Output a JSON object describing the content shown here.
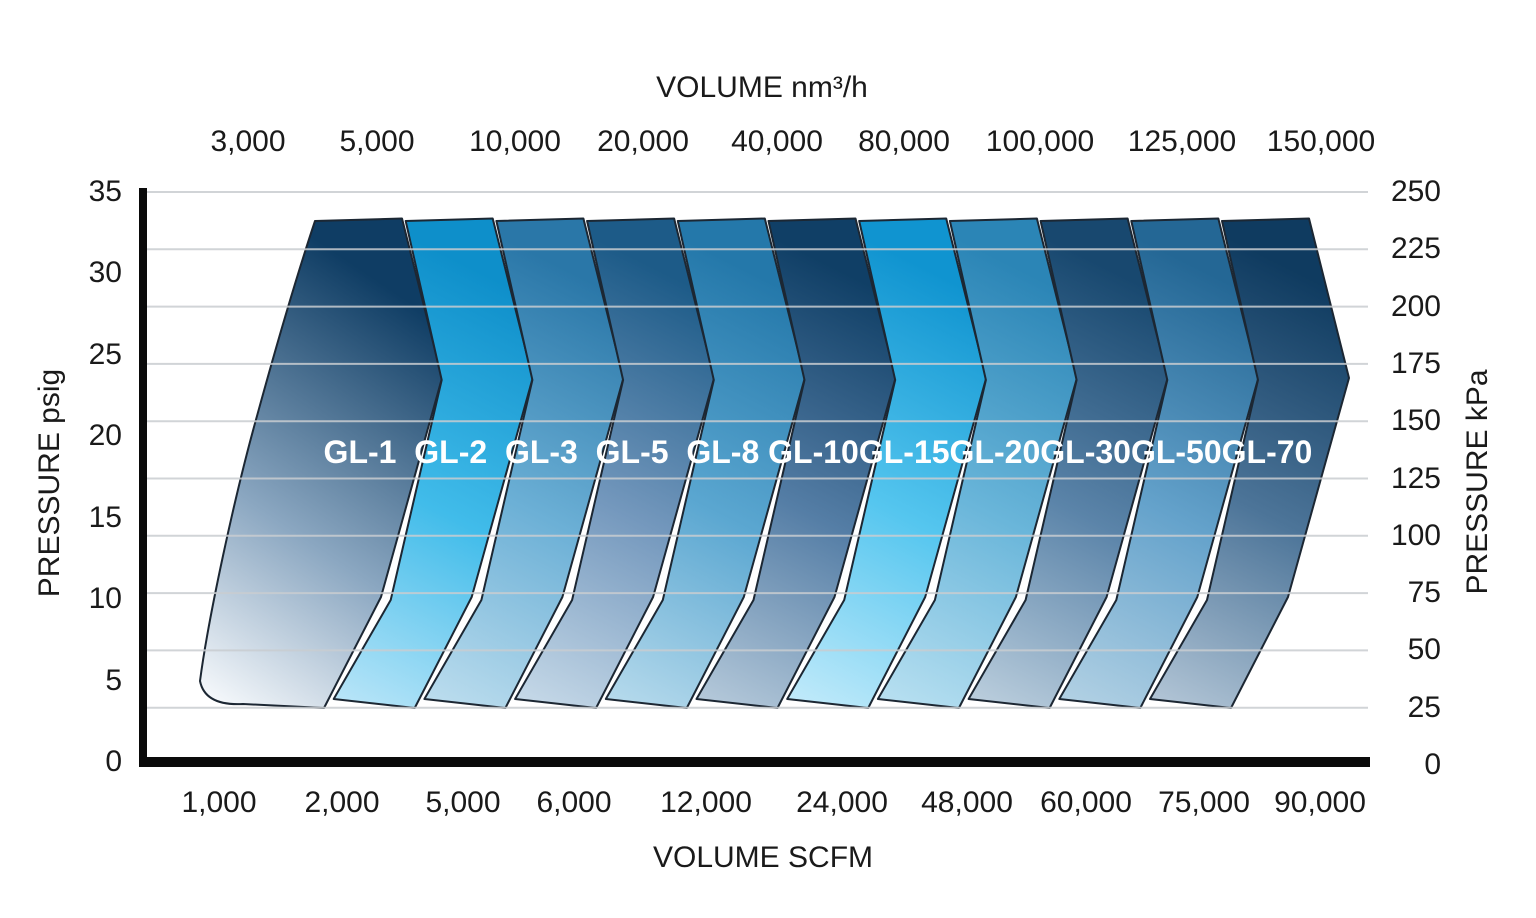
{
  "page": {
    "background": "#ffffff"
  },
  "chart": {
    "axes": {
      "top": {
        "label": "VOLUME nm³/h",
        "ticks": [
          "3,000",
          "5,000",
          "10,000",
          "20,000",
          "40,000",
          "80,000",
          "100,000",
          "125,000",
          "150,000"
        ]
      },
      "bottom": {
        "label": "VOLUME SCFM",
        "ticks": [
          "1,000",
          "2,000",
          "5,000",
          "6,000",
          "12,000",
          "24,000",
          "48,000",
          "60,000",
          "75,000",
          "90,000"
        ]
      },
      "left": {
        "label": "PRESSURE psig",
        "ticks": [
          "35",
          "30",
          "25",
          "20",
          "15",
          "10",
          "5",
          "0"
        ]
      },
      "right": {
        "label": "PRESSURE kPa",
        "ticks": [
          "250",
          "225",
          "200",
          "175",
          "150",
          "125",
          "100",
          "75",
          "50",
          "25",
          "0"
        ]
      }
    },
    "colors": {
      "grid": "#c9cdd1",
      "axis": "#0a0a0a",
      "band_outline": "#1c2733",
      "band_label_text": "#ffffff",
      "tick_text": "#1a1a1a"
    },
    "bands": [
      {
        "label": "GL-1",
        "gradient": [
          "#f5f8fb",
          "#8ba7c1",
          "#0f3d64"
        ]
      },
      {
        "label": "GL-2",
        "gradient": [
          "#b9e5f8",
          "#41bcea",
          "#0e8fca"
        ]
      },
      {
        "label": "GL-3",
        "gradient": [
          "#bcddee",
          "#6cb0d6",
          "#2a77a8"
        ]
      },
      {
        "label": "GL-5",
        "gradient": [
          "#c6d9e8",
          "#7498bd",
          "#1d5b88"
        ]
      },
      {
        "label": "GL-8",
        "gradient": [
          "#b6daec",
          "#5ba7d1",
          "#2478aa"
        ]
      },
      {
        "label": "GL-10",
        "gradient": [
          "#b5c9da",
          "#557ea6",
          "#103f66"
        ]
      },
      {
        "label": "GL-15",
        "gradient": [
          "#c1eafa",
          "#55c6ef",
          "#1094d0"
        ]
      },
      {
        "label": "GL-20",
        "gradient": [
          "#b8e0f1",
          "#6ab6da",
          "#2b85b6"
        ]
      },
      {
        "label": "GL-30",
        "gradient": [
          "#bbcedd",
          "#5b84a9",
          "#18486f"
        ]
      },
      {
        "label": "GL-50",
        "gradient": [
          "#b2d1e4",
          "#64a2cb",
          "#246795"
        ]
      },
      {
        "label": "GL-70",
        "gradient": [
          "#b2c5d6",
          "#4d7599",
          "#0f3b60"
        ]
      }
    ]
  },
  "chart_data": {
    "type": "area",
    "title": "",
    "xlabel_top": "VOLUME nm³/h",
    "xlabel_bottom": "VOLUME SCFM",
    "ylabel_left": "PRESSURE psig",
    "ylabel_right": "PRESSURE kPa",
    "x_ticks_nm3h": [
      3000,
      5000,
      10000,
      20000,
      40000,
      80000,
      100000,
      125000,
      150000
    ],
    "x_ticks_scfm": [
      1000,
      2000,
      5000,
      6000,
      12000,
      24000,
      48000,
      60000,
      75000,
      90000
    ],
    "y_ticks_psig": [
      35,
      30,
      25,
      20,
      15,
      10,
      5,
      0
    ],
    "y_ticks_kpa": [
      250,
      225,
      200,
      175,
      150,
      125,
      100,
      75,
      50,
      25,
      0
    ],
    "ylim_psig": [
      0,
      35
    ],
    "ylim_kpa": [
      0,
      250
    ],
    "grid": "horizontal lines at 25 kPa intervals",
    "legend_position": "labels inside bands",
    "series": [
      {
        "name": "GL-1",
        "pressure_min_psig": 4,
        "pressure_max_psig": 33,
        "widest_at_pressure_psig": 23.5,
        "max_volume_scfm_approx": 4500
      },
      {
        "name": "GL-2",
        "pressure_min_psig": 4,
        "pressure_max_psig": 33,
        "widest_at_pressure_psig": 23.5,
        "max_volume_scfm_approx": 5600
      },
      {
        "name": "GL-3",
        "pressure_min_psig": 4,
        "pressure_max_psig": 33,
        "widest_at_pressure_psig": 23.5,
        "max_volume_scfm_approx": 8000
      },
      {
        "name": "GL-5",
        "pressure_min_psig": 4,
        "pressure_max_psig": 33,
        "widest_at_pressure_psig": 23.5,
        "max_volume_scfm_approx": 12000
      },
      {
        "name": "GL-8",
        "pressure_min_psig": 4,
        "pressure_max_psig": 33,
        "widest_at_pressure_psig": 23.5,
        "max_volume_scfm_approx": 20000
      },
      {
        "name": "GL-10",
        "pressure_min_psig": 4,
        "pressure_max_psig": 33,
        "widest_at_pressure_psig": 23.5,
        "max_volume_scfm_approx": 34000
      },
      {
        "name": "GL-15",
        "pressure_min_psig": 4,
        "pressure_max_psig": 33,
        "widest_at_pressure_psig": 23.5,
        "max_volume_scfm_approx": 48000
      },
      {
        "name": "GL-20",
        "pressure_min_psig": 4,
        "pressure_max_psig": 33,
        "widest_at_pressure_psig": 23.5,
        "max_volume_scfm_approx": 60000
      },
      {
        "name": "GL-30",
        "pressure_min_psig": 4,
        "pressure_max_psig": 33,
        "widest_at_pressure_psig": 23.5,
        "max_volume_scfm_approx": 70000
      },
      {
        "name": "GL-50",
        "pressure_min_psig": 4,
        "pressure_max_psig": 33,
        "widest_at_pressure_psig": 23.5,
        "max_volume_scfm_approx": 82000
      },
      {
        "name": "GL-70",
        "pressure_min_psig": 4,
        "pressure_max_psig": 33,
        "widest_at_pressure_psig": 23.5,
        "max_volume_scfm_approx": 95000
      }
    ]
  }
}
